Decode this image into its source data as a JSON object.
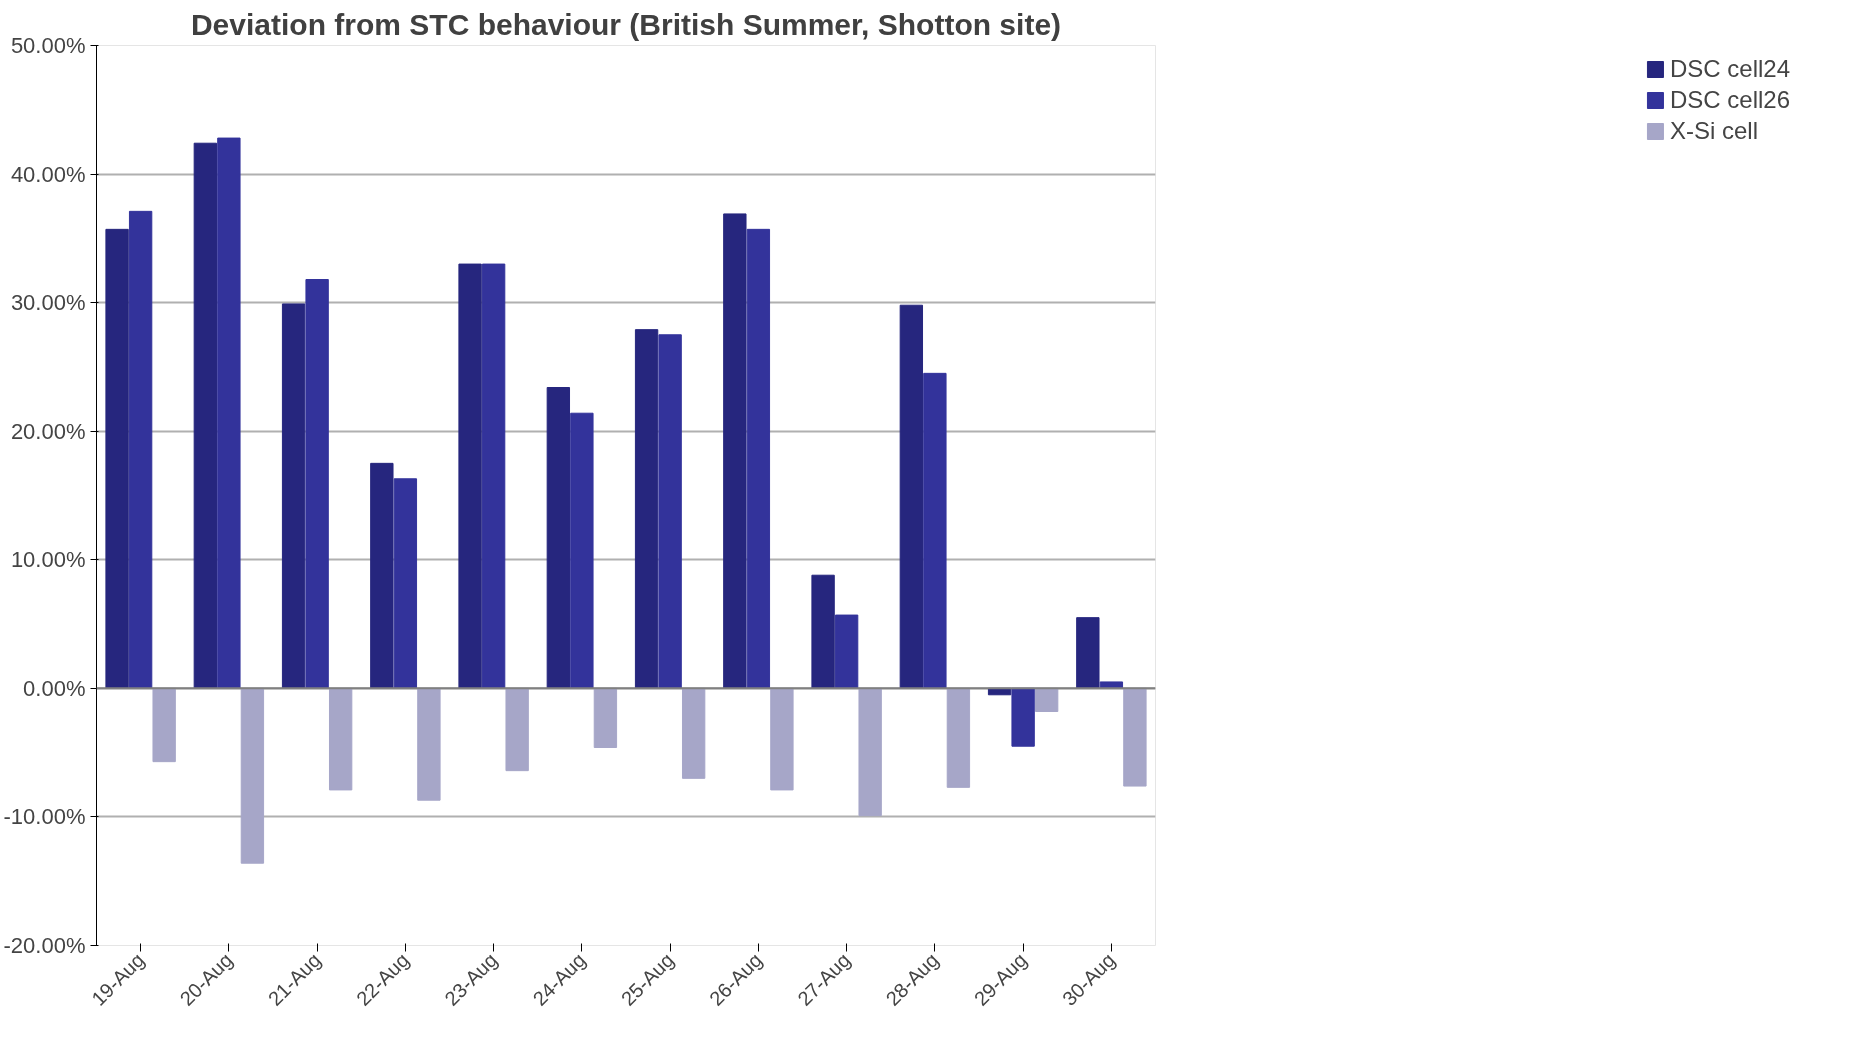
{
  "chart_data": {
    "type": "bar",
    "title": "Deviation from STC behaviour (British Summer, Shotton site)",
    "categories": [
      "19-Aug",
      "20-Aug",
      "21-Aug",
      "22-Aug",
      "23-Aug",
      "24-Aug",
      "25-Aug",
      "26-Aug",
      "27-Aug",
      "28-Aug",
      "29-Aug",
      "30-Aug"
    ],
    "series": [
      {
        "name": "DSC cell24",
        "color": "#26267e",
        "values": [
          35.7,
          42.4,
          29.9,
          17.5,
          33.0,
          23.4,
          27.9,
          36.9,
          8.8,
          29.8,
          -0.5,
          5.5
        ]
      },
      {
        "name": "DSC cell26",
        "color": "#33339b",
        "values": [
          37.1,
          42.8,
          31.8,
          16.3,
          33.0,
          21.4,
          27.5,
          35.7,
          5.7,
          24.5,
          -4.5,
          0.5
        ]
      },
      {
        "name": "X-Si cell",
        "color": "#a6a6c8",
        "values": [
          -5.7,
          -13.6,
          -7.9,
          -8.7,
          -6.4,
          -4.6,
          -7.0,
          -7.9,
          -9.9,
          -7.7,
          -1.8,
          -7.6
        ]
      }
    ],
    "ylim": [
      -20,
      50
    ],
    "yticks": [
      {
        "value": -20,
        "label": "-20.00%"
      },
      {
        "value": -10,
        "label": "-10.00%"
      },
      {
        "value": 0,
        "label": "0.00%"
      },
      {
        "value": 10,
        "label": "10.00%"
      },
      {
        "value": 20,
        "label": "20.00%"
      },
      {
        "value": 30,
        "label": "30.00%"
      },
      {
        "value": 40,
        "label": "40.00%"
      },
      {
        "value": 50,
        "label": "50.00%"
      }
    ],
    "grid": "y",
    "legend": "right"
  }
}
